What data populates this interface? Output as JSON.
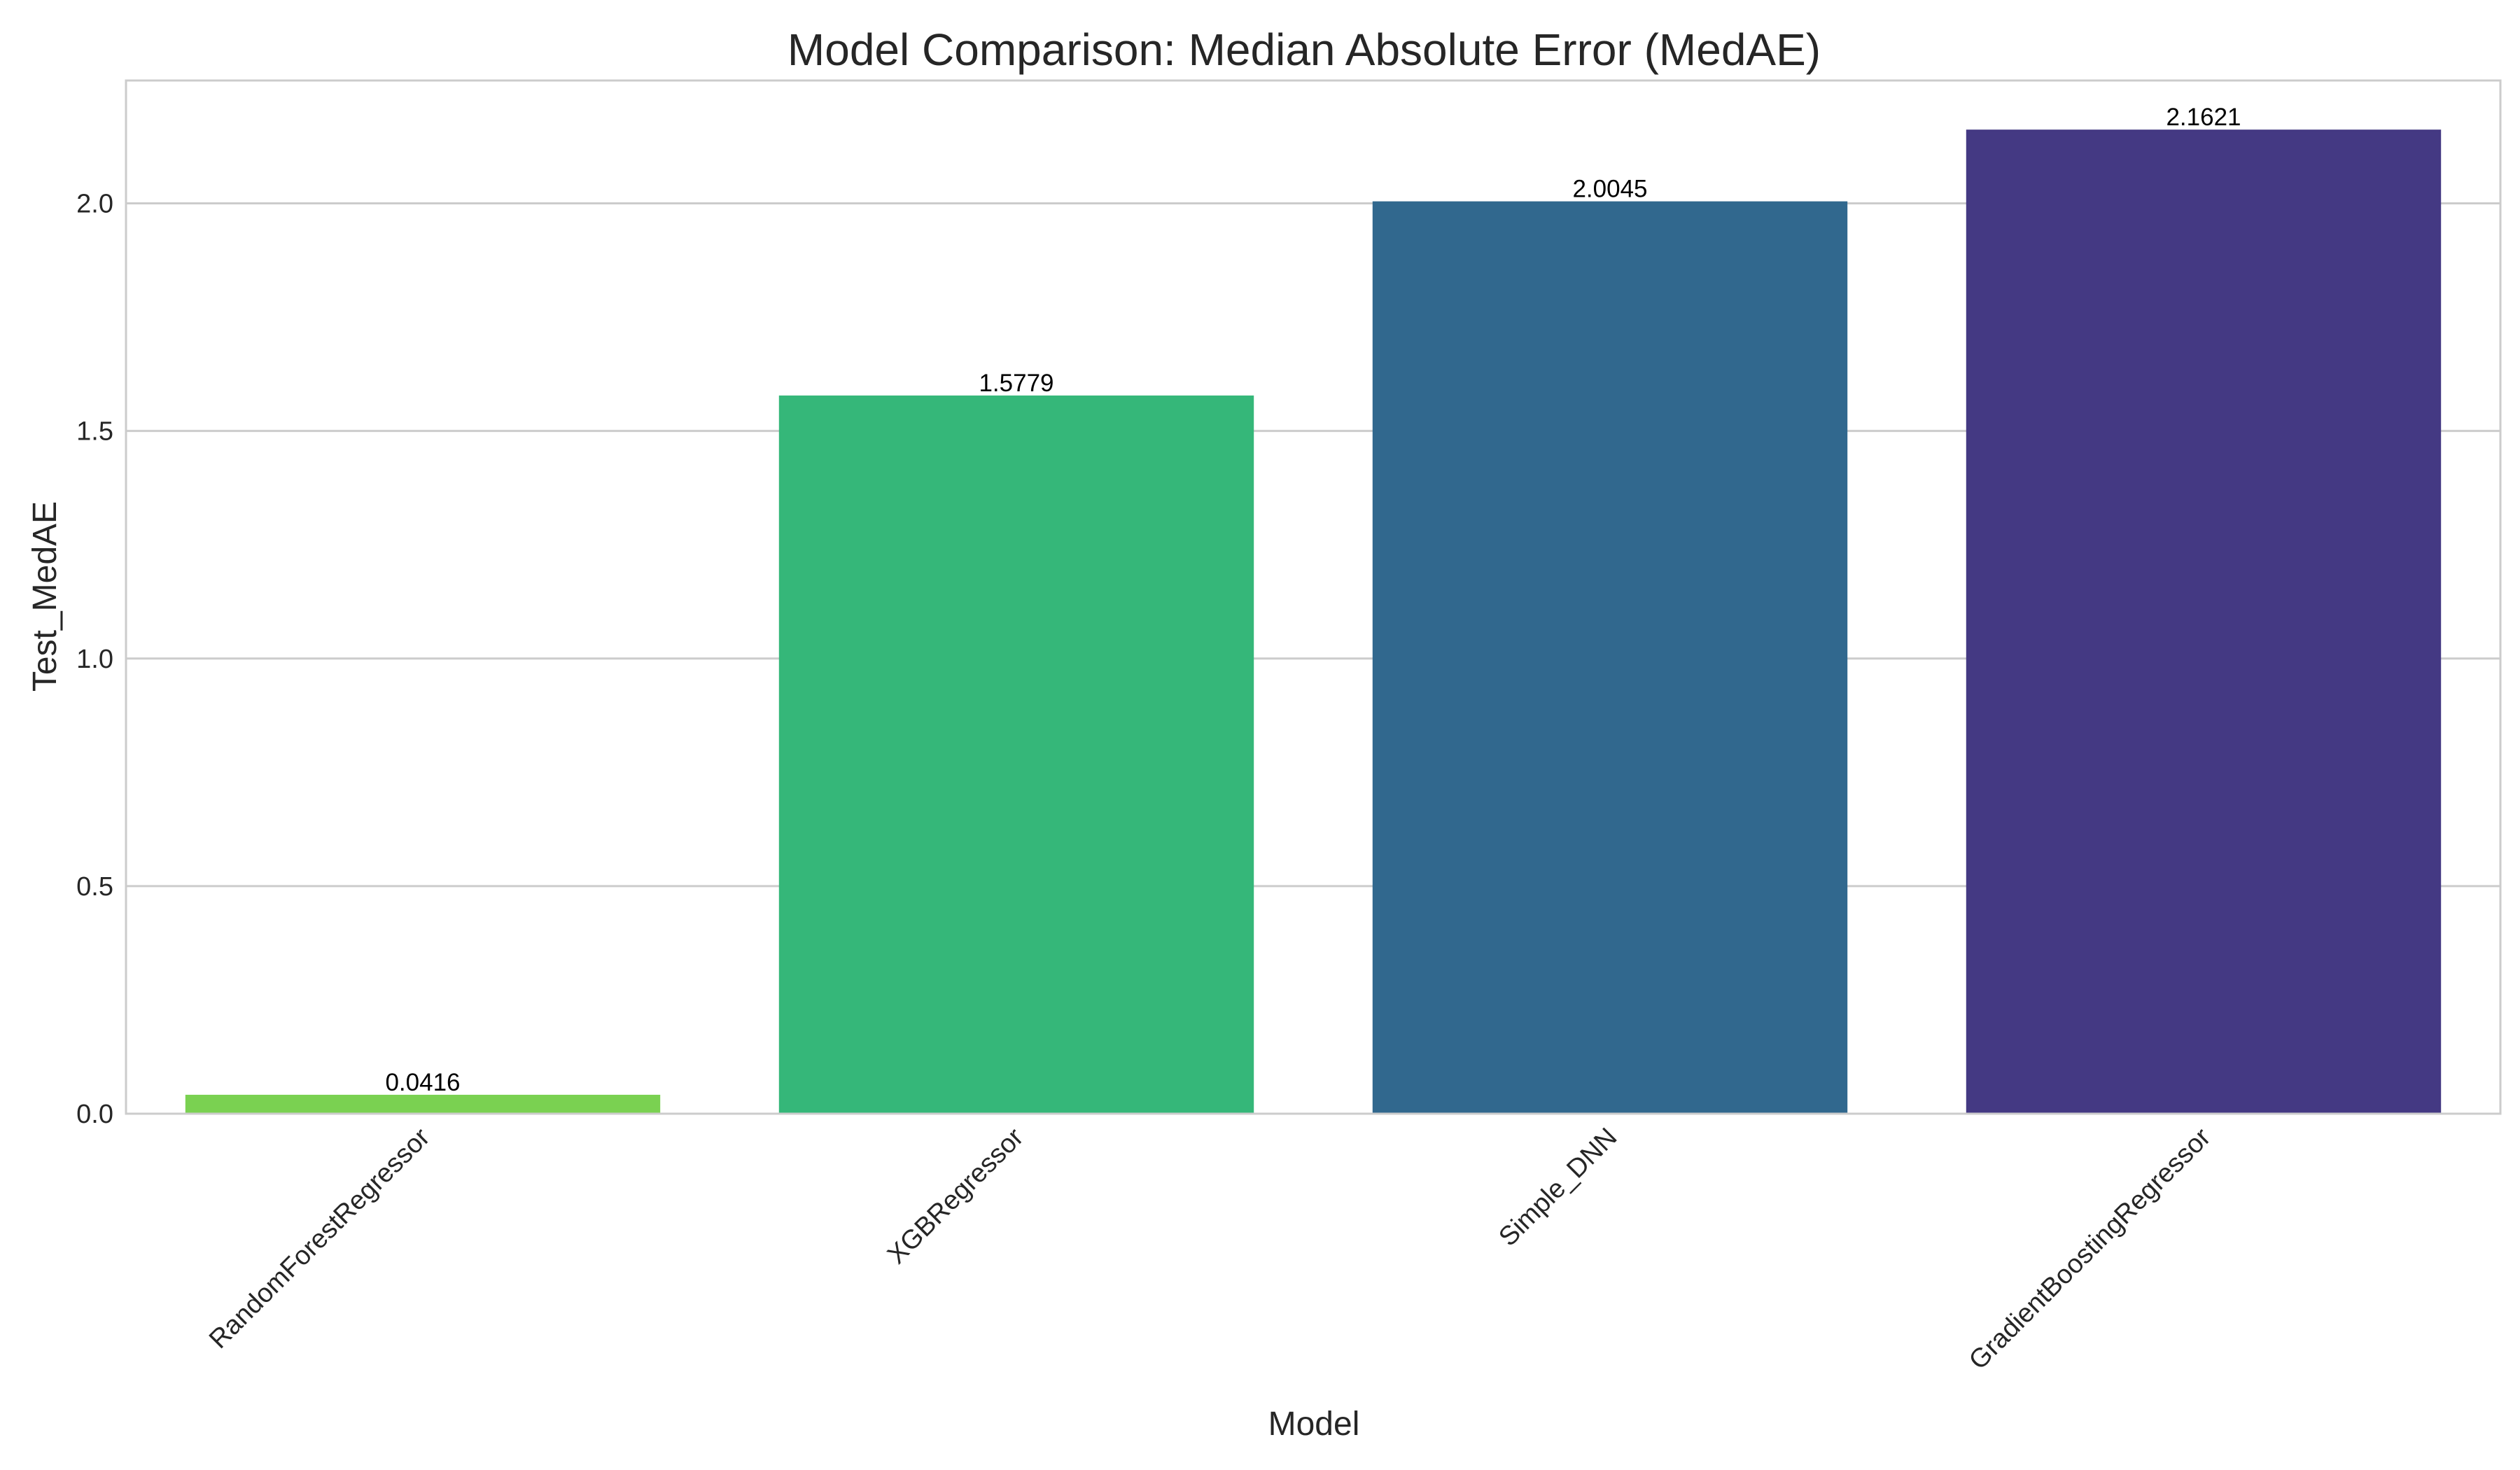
{
  "chart_data": {
    "type": "bar",
    "title": "Model Comparison: Median Absolute Error (MedAE)",
    "xlabel": "Model",
    "ylabel": "Test_MedAE",
    "categories": [
      "RandomForestRegressor",
      "XGBRegressor",
      "Simple_DNN",
      "GradientBoostingRegressor"
    ],
    "values": [
      0.0416,
      1.5779,
      2.0045,
      2.1621
    ],
    "value_labels": [
      "0.0416",
      "1.5779",
      "2.0045",
      "2.1621"
    ],
    "colors": [
      "#7ad151",
      "#35b779",
      "#31688e",
      "#443983"
    ],
    "ylim": [
      0,
      2.27
    ],
    "yticks": [
      0.0,
      0.5,
      1.0,
      1.5,
      2.0
    ],
    "ytick_labels": [
      "0.0",
      "0.5",
      "1.0",
      "1.5",
      "2.0"
    ],
    "grid": "horizontal",
    "xtick_rotation_deg": 45
  }
}
